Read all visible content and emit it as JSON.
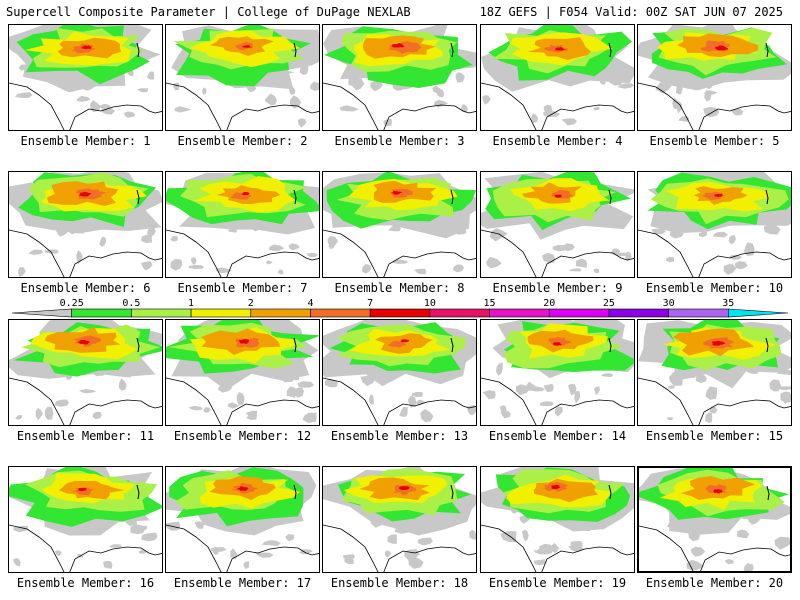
{
  "header": {
    "left": "Supercell Composite Parameter | College of DuPage NEXLAB",
    "right": "18Z GEFS | F054 Valid: 00Z SAT JUN 07 2025"
  },
  "legend": {
    "thresholds": [
      "0.25",
      "0.5",
      "1",
      "2",
      "4",
      "7",
      "10",
      "15",
      "20",
      "25",
      "30",
      "35"
    ],
    "colors": [
      "#c8c8c8",
      "#32e632",
      "#aaf046",
      "#f0f000",
      "#f0a000",
      "#f06e28",
      "#e60000",
      "#e61464",
      "#e614c8",
      "#dc00f0",
      "#8c00e6",
      "#aa64f0",
      "#00e6f0"
    ]
  },
  "panels": [
    {
      "label": "Ensemble Member: 1",
      "intensity": 0.62,
      "variant": 1
    },
    {
      "label": "Ensemble Member: 2",
      "intensity": 0.55,
      "variant": 2
    },
    {
      "label": "Ensemble Member: 3",
      "intensity": 0.78,
      "variant": 3
    },
    {
      "label": "Ensemble Member: 4",
      "intensity": 0.62,
      "variant": 4
    },
    {
      "label": "Ensemble Member: 5",
      "intensity": 0.82,
      "variant": 5
    },
    {
      "label": "Ensemble Member: 6",
      "intensity": 0.8,
      "variant": 6
    },
    {
      "label": "Ensemble Member: 7",
      "intensity": 0.55,
      "variant": 7
    },
    {
      "label": "Ensemble Member: 8",
      "intensity": 0.65,
      "variant": 8
    },
    {
      "label": "Ensemble Member: 9",
      "intensity": 0.58,
      "variant": 9
    },
    {
      "label": "Ensemble Member: 10",
      "intensity": 0.55,
      "variant": 10
    },
    {
      "label": "Ensemble Member: 11",
      "intensity": 0.72,
      "variant": 11
    },
    {
      "label": "Ensemble Member: 12",
      "intensity": 0.74,
      "variant": 12
    },
    {
      "label": "Ensemble Member: 13",
      "intensity": 0.52,
      "variant": 13
    },
    {
      "label": "Ensemble Member: 14",
      "intensity": 0.6,
      "variant": 14
    },
    {
      "label": "Ensemble Member: 15",
      "intensity": 0.85,
      "variant": 15
    },
    {
      "label": "Ensemble Member: 16",
      "intensity": 0.55,
      "variant": 16
    },
    {
      "label": "Ensemble Member: 17",
      "intensity": 0.68,
      "variant": 17
    },
    {
      "label": "Ensemble Member: 18",
      "intensity": 0.66,
      "variant": 18
    },
    {
      "label": "Ensemble Member: 19",
      "intensity": 0.62,
      "variant": 19
    },
    {
      "label": "Ensemble Member: 20",
      "intensity": 0.66,
      "variant": 20
    }
  ]
}
